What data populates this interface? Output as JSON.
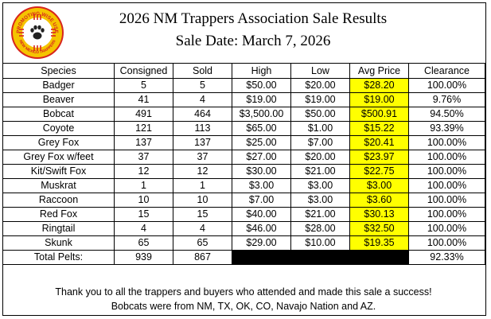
{
  "header": {
    "logo_text_top": "PROMOTING WISE USE",
    "logo_text_bottom": "NEW MEXICO TRAPPERS",
    "title": "2026 NM Trappers Association Sale Results",
    "subtitle": "Sale Date: March 7, 2026"
  },
  "colors": {
    "highlight": "#ffff00",
    "logo_red": "#d7261e",
    "logo_yellow": "#f5c400"
  },
  "table": {
    "columns": [
      "Species",
      "Consigned",
      "Sold",
      "High",
      "Low",
      "Avg Price",
      "Clearance"
    ],
    "rows": [
      [
        "Badger",
        "5",
        "5",
        "$50.00",
        "$20.00",
        "$28.20",
        "100.00%"
      ],
      [
        "Beaver",
        "41",
        "4",
        "$19.00",
        "$19.00",
        "$19.00",
        "9.76%"
      ],
      [
        "Bobcat",
        "491",
        "464",
        "$3,500.00",
        "$50.00",
        "$500.91",
        "94.50%"
      ],
      [
        "Coyote",
        "121",
        "113",
        "$65.00",
        "$1.00",
        "$15.22",
        "93.39%"
      ],
      [
        "Grey Fox",
        "137",
        "137",
        "$25.00",
        "$7.00",
        "$20.41",
        "100.00%"
      ],
      [
        "Grey Fox w/feet",
        "37",
        "37",
        "$27.00",
        "$20.00",
        "$23.97",
        "100.00%"
      ],
      [
        "Kit/Swift Fox",
        "12",
        "12",
        "$30.00",
        "$21.00",
        "$22.75",
        "100.00%"
      ],
      [
        "Muskrat",
        "1",
        "1",
        "$3.00",
        "$3.00",
        "$3.00",
        "100.00%"
      ],
      [
        "Raccoon",
        "10",
        "10",
        "$7.00",
        "$3.00",
        "$3.60",
        "100.00%"
      ],
      [
        "Red Fox",
        "15",
        "15",
        "$40.00",
        "$21.00",
        "$30.13",
        "100.00%"
      ],
      [
        "Ringtail",
        "4",
        "4",
        "$46.00",
        "$28.00",
        "$32.50",
        "100.00%"
      ],
      [
        "Skunk",
        "65",
        "65",
        "$29.00",
        "$10.00",
        "$19.35",
        "100.00%"
      ]
    ],
    "total": {
      "label": "Total Pelts:",
      "consigned": "939",
      "sold": "867",
      "clearance": "92.33%"
    }
  },
  "footer": {
    "line1": "Thank you to all the trappers and buyers who attended and made this sale a success!",
    "line2": "Bobcats were from NM, TX, OK, CO, Navajo Nation and AZ."
  }
}
